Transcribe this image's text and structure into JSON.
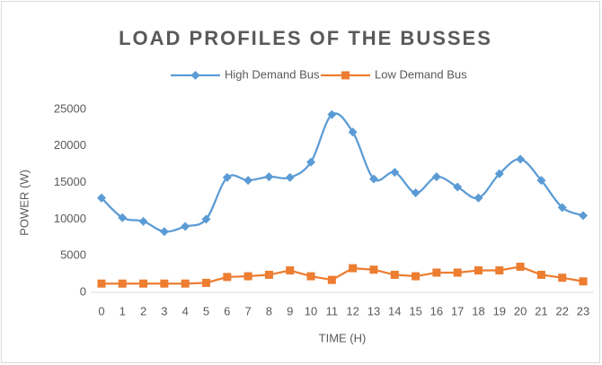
{
  "chart_data": {
    "type": "line",
    "title": "LOAD PROFILES OF THE BUSSES",
    "x_label": "TIME (H)",
    "y_label": "POWER (W)",
    "categories": [
      "0",
      "1",
      "2",
      "3",
      "4",
      "5",
      "6",
      "7",
      "8",
      "9",
      "10",
      "11",
      "12",
      "13",
      "14",
      "15",
      "16",
      "17",
      "18",
      "19",
      "20",
      "21",
      "22",
      "23"
    ],
    "series": [
      {
        "name": "High Demand Bus",
        "color": "#5b9bd5",
        "marker": "diamond",
        "smooth": true,
        "values": [
          12900,
          10200,
          9700,
          8300,
          9000,
          10000,
          15700,
          15300,
          15800,
          15700,
          17800,
          24300,
          21900,
          15500,
          16400,
          13600,
          15800,
          14400,
          12900,
          16200,
          18200,
          15300,
          11600,
          10500
        ]
      },
      {
        "name": "Low Demand Bus",
        "color": "#ed7d31",
        "marker": "square",
        "smooth": false,
        "values": [
          1200,
          1200,
          1200,
          1200,
          1200,
          1300,
          2100,
          2200,
          2400,
          3000,
          2200,
          1700,
          3300,
          3100,
          2400,
          2200,
          2700,
          2700,
          3000,
          3000,
          3500,
          2400,
          2000,
          1500
        ]
      }
    ],
    "ylim": [
      0,
      25000
    ],
    "yticks": [
      0,
      5000,
      10000,
      15000,
      20000,
      25000
    ],
    "grid": false,
    "legend": "top"
  }
}
